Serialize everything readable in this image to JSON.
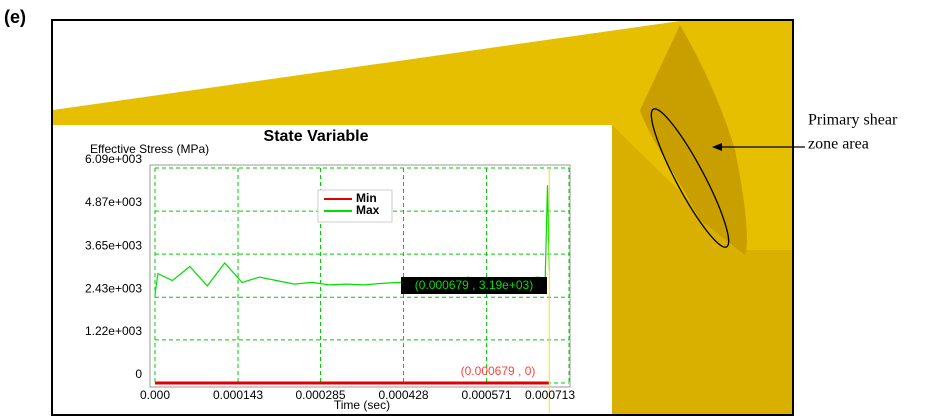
{
  "figure": {
    "panel_label": "(e)",
    "callout": [
      "Primary shear",
      "zone area"
    ]
  },
  "chart_data": {
    "type": "line",
    "title": "State Variable",
    "y_label": "Effective Stress (MPa)",
    "x_label": "Time (sec)",
    "x": [
      0,
      5e-06,
      3e-05,
      6e-05,
      9e-05,
      0.00012,
      0.00015,
      0.00018,
      0.00021,
      0.00024,
      0.00027,
      0.0003,
      0.00033,
      0.00036,
      0.00039,
      0.00042,
      0.00045,
      0.00048,
      0.00051,
      0.00054,
      0.00057,
      0.0006,
      0.00063,
      0.00066,
      0.000672,
      0.000676,
      0.000679
    ],
    "series": [
      {
        "name": "Min",
        "color": "#e00000",
        "values": [
          0,
          0,
          0,
          0,
          0,
          0,
          0,
          0,
          0,
          0,
          0,
          0,
          0,
          0,
          0,
          0,
          0,
          0,
          0,
          0,
          0,
          0,
          0,
          0,
          0,
          0,
          0
        ]
      },
      {
        "name": "Max",
        "color": "#00e000",
        "values": [
          2500,
          3100,
          2900,
          3300,
          2750,
          3400,
          2850,
          3000,
          2900,
          2800,
          2850,
          2780,
          2800,
          2780,
          2820,
          2850,
          2820,
          2900,
          2850,
          3000,
          2850,
          2900,
          2950,
          3000,
          2950,
          5600,
          3190
        ]
      }
    ],
    "xlim": [
      0,
      0.000713
    ],
    "xticks": [
      {
        "value": 0,
        "label": "0.000"
      },
      0.000143,
      0.000285,
      0.000428,
      0.000571,
      0.000713
    ],
    "ylim": [
      0,
      6090
    ],
    "yticks": [
      0,
      {
        "value": 1220,
        "label": "1.22e+003"
      },
      {
        "value": 2430,
        "label": "2.43e+003"
      },
      {
        "value": 3650,
        "label": "3.65e+003"
      },
      {
        "value": 4870,
        "label": "4.87e+003"
      },
      {
        "value": 6090,
        "label": "6.09e+003"
      }
    ],
    "grid": true,
    "annotations": [
      "(0.000679 , 3.19e+03)",
      "(0.000679 , 0)"
    ]
  }
}
